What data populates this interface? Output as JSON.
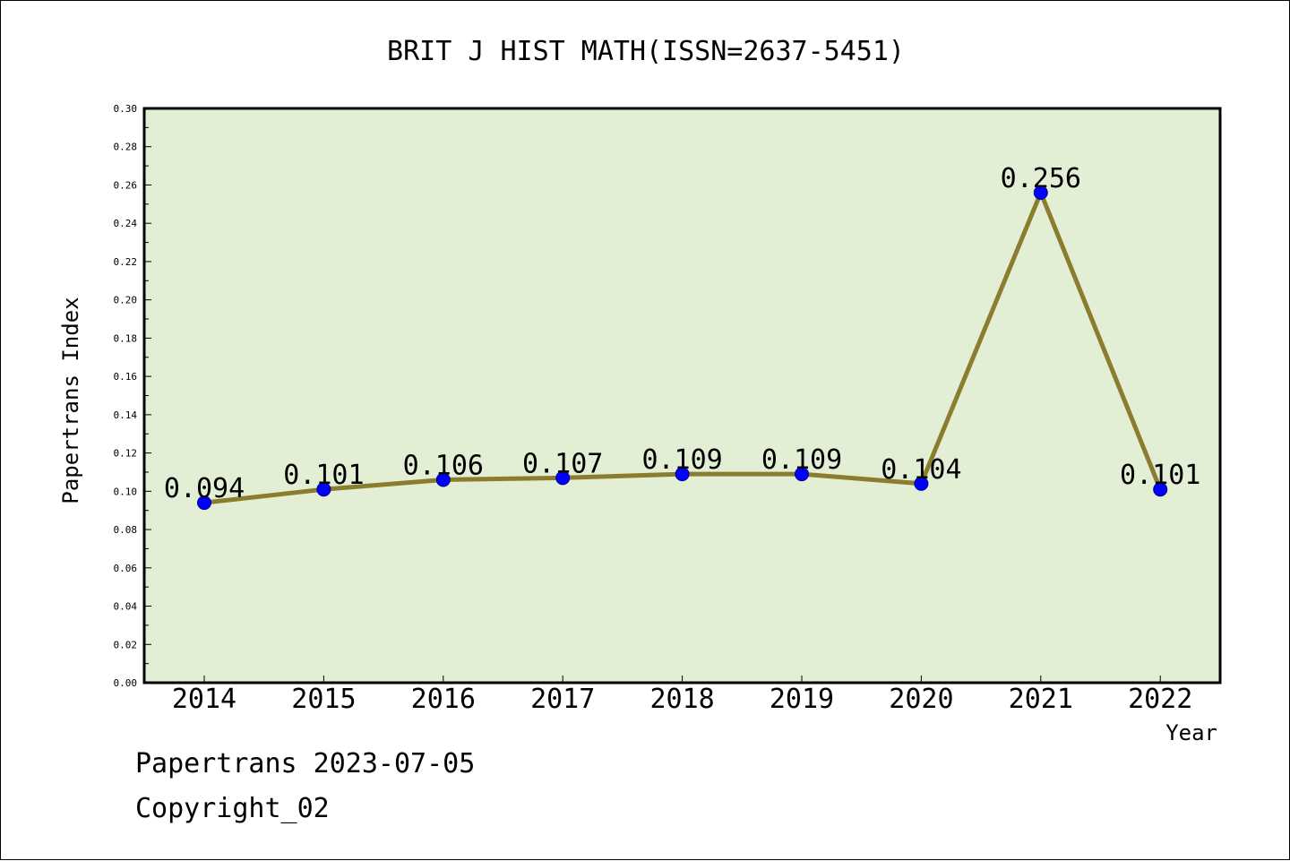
{
  "chart_data": {
    "type": "line",
    "title": "BRIT J HIST MATH(ISSN=2637-5451)",
    "xlabel": "Year",
    "ylabel": "Papertrans Index",
    "categories": [
      "2014",
      "2015",
      "2016",
      "2017",
      "2018",
      "2019",
      "2020",
      "2021",
      "2022"
    ],
    "series": [
      {
        "values": [
          0.094,
          0.101,
          0.106,
          0.107,
          0.109,
          0.109,
          0.104,
          0.256,
          0.101
        ],
        "labels": [
          "0.094",
          "0.101",
          "0.106",
          "0.107",
          "0.109",
          "0.109",
          "0.104",
          "0.256",
          "0.101"
        ]
      }
    ],
    "ylim": [
      0,
      0.3
    ],
    "yticks": [
      "0.00",
      "0.02",
      "0.04",
      "0.06",
      "0.08",
      "0.10",
      "0.12",
      "0.14",
      "0.16",
      "0.18",
      "0.20",
      "0.22",
      "0.24",
      "0.26",
      "0.28",
      "0.30"
    ],
    "grid": false,
    "legend": "none",
    "colors": {
      "plot_background": "#e2efd4",
      "line": "#8b7d2f",
      "marker": "#0000ff"
    }
  },
  "footer": {
    "date_line": "Papertrans 2023-07-05",
    "copyright": "Copyright_02"
  }
}
